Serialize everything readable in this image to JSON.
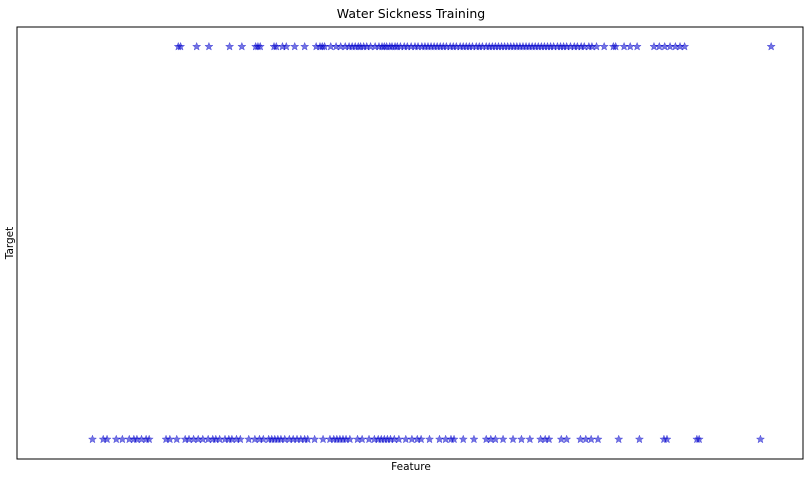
{
  "chart_data": {
    "type": "scatter",
    "title": "Water Sickness Training",
    "xlabel": "Feature",
    "ylabel": "Target",
    "marker": "star",
    "marker_color": "#0000cc",
    "marker_alpha": 0.55,
    "grid": false,
    "xticks_shown": false,
    "yticks_shown": false,
    "ylim": [
      -0.05,
      1.05
    ],
    "xlim": [
      0,
      100
    ],
    "series": [
      {
        "y": 1,
        "x": [
          17.4,
          17.7,
          19.8,
          21.4,
          24.1,
          25.7,
          27.5,
          27.8,
          28.1,
          29.9,
          30.2,
          31.0,
          31.5,
          32.6,
          33.9,
          35.4,
          35.9,
          36.2,
          36.5,
          37.3,
          38.0,
          38.6,
          39.2,
          39.7,
          40.1,
          40.5,
          40.9,
          41.2,
          41.6,
          42.0,
          42.5,
          43.1,
          43.6,
          44.0,
          44.3,
          44.6,
          45.0,
          45.3,
          45.7,
          46.0,
          46.4,
          46.9,
          47.3,
          47.8,
          48.3,
          48.7,
          49.2,
          49.6,
          50.0,
          50.4,
          50.8,
          51.2,
          51.6,
          52.0,
          52.4,
          52.9,
          53.3,
          53.7,
          54.2,
          54.6,
          55.0,
          55.4,
          55.8,
          56.3,
          56.7,
          57.1,
          57.6,
          58.0,
          58.4,
          58.8,
          59.2,
          59.6,
          60.0,
          60.4,
          60.8,
          61.2,
          61.6,
          62.0,
          62.4,
          62.8,
          63.2,
          63.6,
          64.0,
          64.4,
          64.8,
          65.2,
          65.6,
          66.0,
          66.4,
          66.9,
          67.3,
          67.7,
          68.1,
          68.6,
          69.1,
          69.5,
          70.0,
          70.4,
          71.0,
          71.4,
          72.0,
          73.0,
          74.2,
          74.5,
          75.6,
          76.4,
          77.3,
          79.5,
          80.2,
          80.9,
          81.6,
          82.3,
          82.9,
          83.5,
          94.8
        ]
      },
      {
        "y": 0,
        "x": [
          6.2,
          7.6,
          8.1,
          9.3,
          10.1,
          11.0,
          11.6,
          12.0,
          12.6,
          13.2,
          13.6,
          15.8,
          16.3,
          17.2,
          18.3,
          18.8,
          19.4,
          20.0,
          20.6,
          21.3,
          21.9,
          22.3,
          22.8,
          23.5,
          24.0,
          24.4,
          25.0,
          25.5,
          26.6,
          27.4,
          28.0,
          28.5,
          29.2,
          29.6,
          30.0,
          30.4,
          30.8,
          31.3,
          31.9,
          32.4,
          32.9,
          33.4,
          33.9,
          34.3,
          35.2,
          36.3,
          37.2,
          37.7,
          38.1,
          38.5,
          38.9,
          39.3,
          39.8,
          40.8,
          41.4,
          42.3,
          43.0,
          43.5,
          43.9,
          44.3,
          44.7,
          45.1,
          45.6,
          46.2,
          47.1,
          47.9,
          48.6,
          49.1,
          50.2,
          51.5,
          52.3,
          53.0,
          53.4,
          54.6,
          56.0,
          57.6,
          58.2,
          58.8,
          59.8,
          61.1,
          62.2,
          63.3,
          64.7,
          65.3,
          65.8,
          67.4,
          68.1,
          69.9,
          70.6,
          71.3,
          72.2,
          74.9,
          77.6,
          80.8,
          81.2,
          85.1,
          85.4,
          93.4
        ]
      }
    ]
  }
}
